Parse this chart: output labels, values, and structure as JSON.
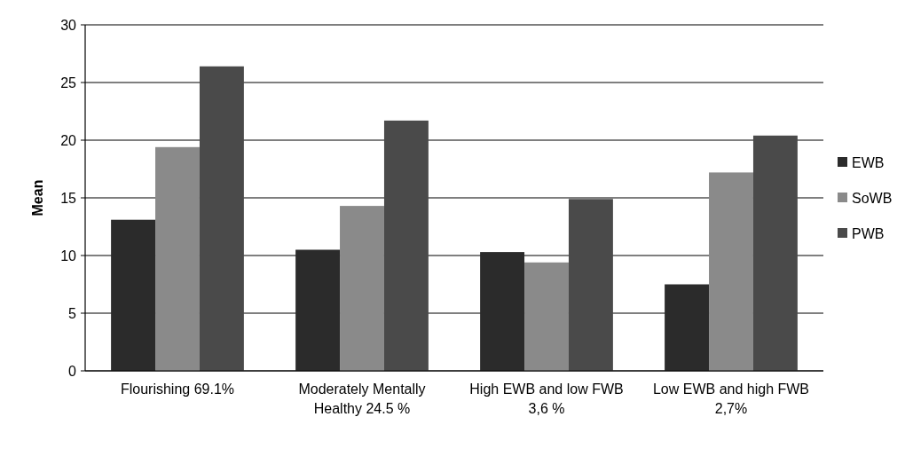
{
  "chart_data": {
    "type": "bar",
    "ylabel": "Mean",
    "categories": [
      "Flourishing 69.1%",
      "Moderately Mentally Healthy 24.5 %",
      "High EWB and low FWB 3,6 %",
      "Low EWB and high FWB 2,7%"
    ],
    "series": [
      {
        "name": "EWB",
        "color": "#2b2b2b",
        "values": [
          13.1,
          10.5,
          10.3,
          7.5
        ]
      },
      {
        "name": "SoWB",
        "color": "#8a8a8a",
        "values": [
          19.4,
          14.3,
          9.4,
          17.2
        ]
      },
      {
        "name": "PWB",
        "color": "#4a4a4a",
        "values": [
          26.4,
          21.7,
          14.9,
          20.4
        ]
      }
    ],
    "ylim": [
      0,
      30
    ],
    "yticks": [
      0,
      5,
      10,
      15,
      20,
      25,
      30
    ],
    "grid": "y",
    "legend": "right"
  }
}
